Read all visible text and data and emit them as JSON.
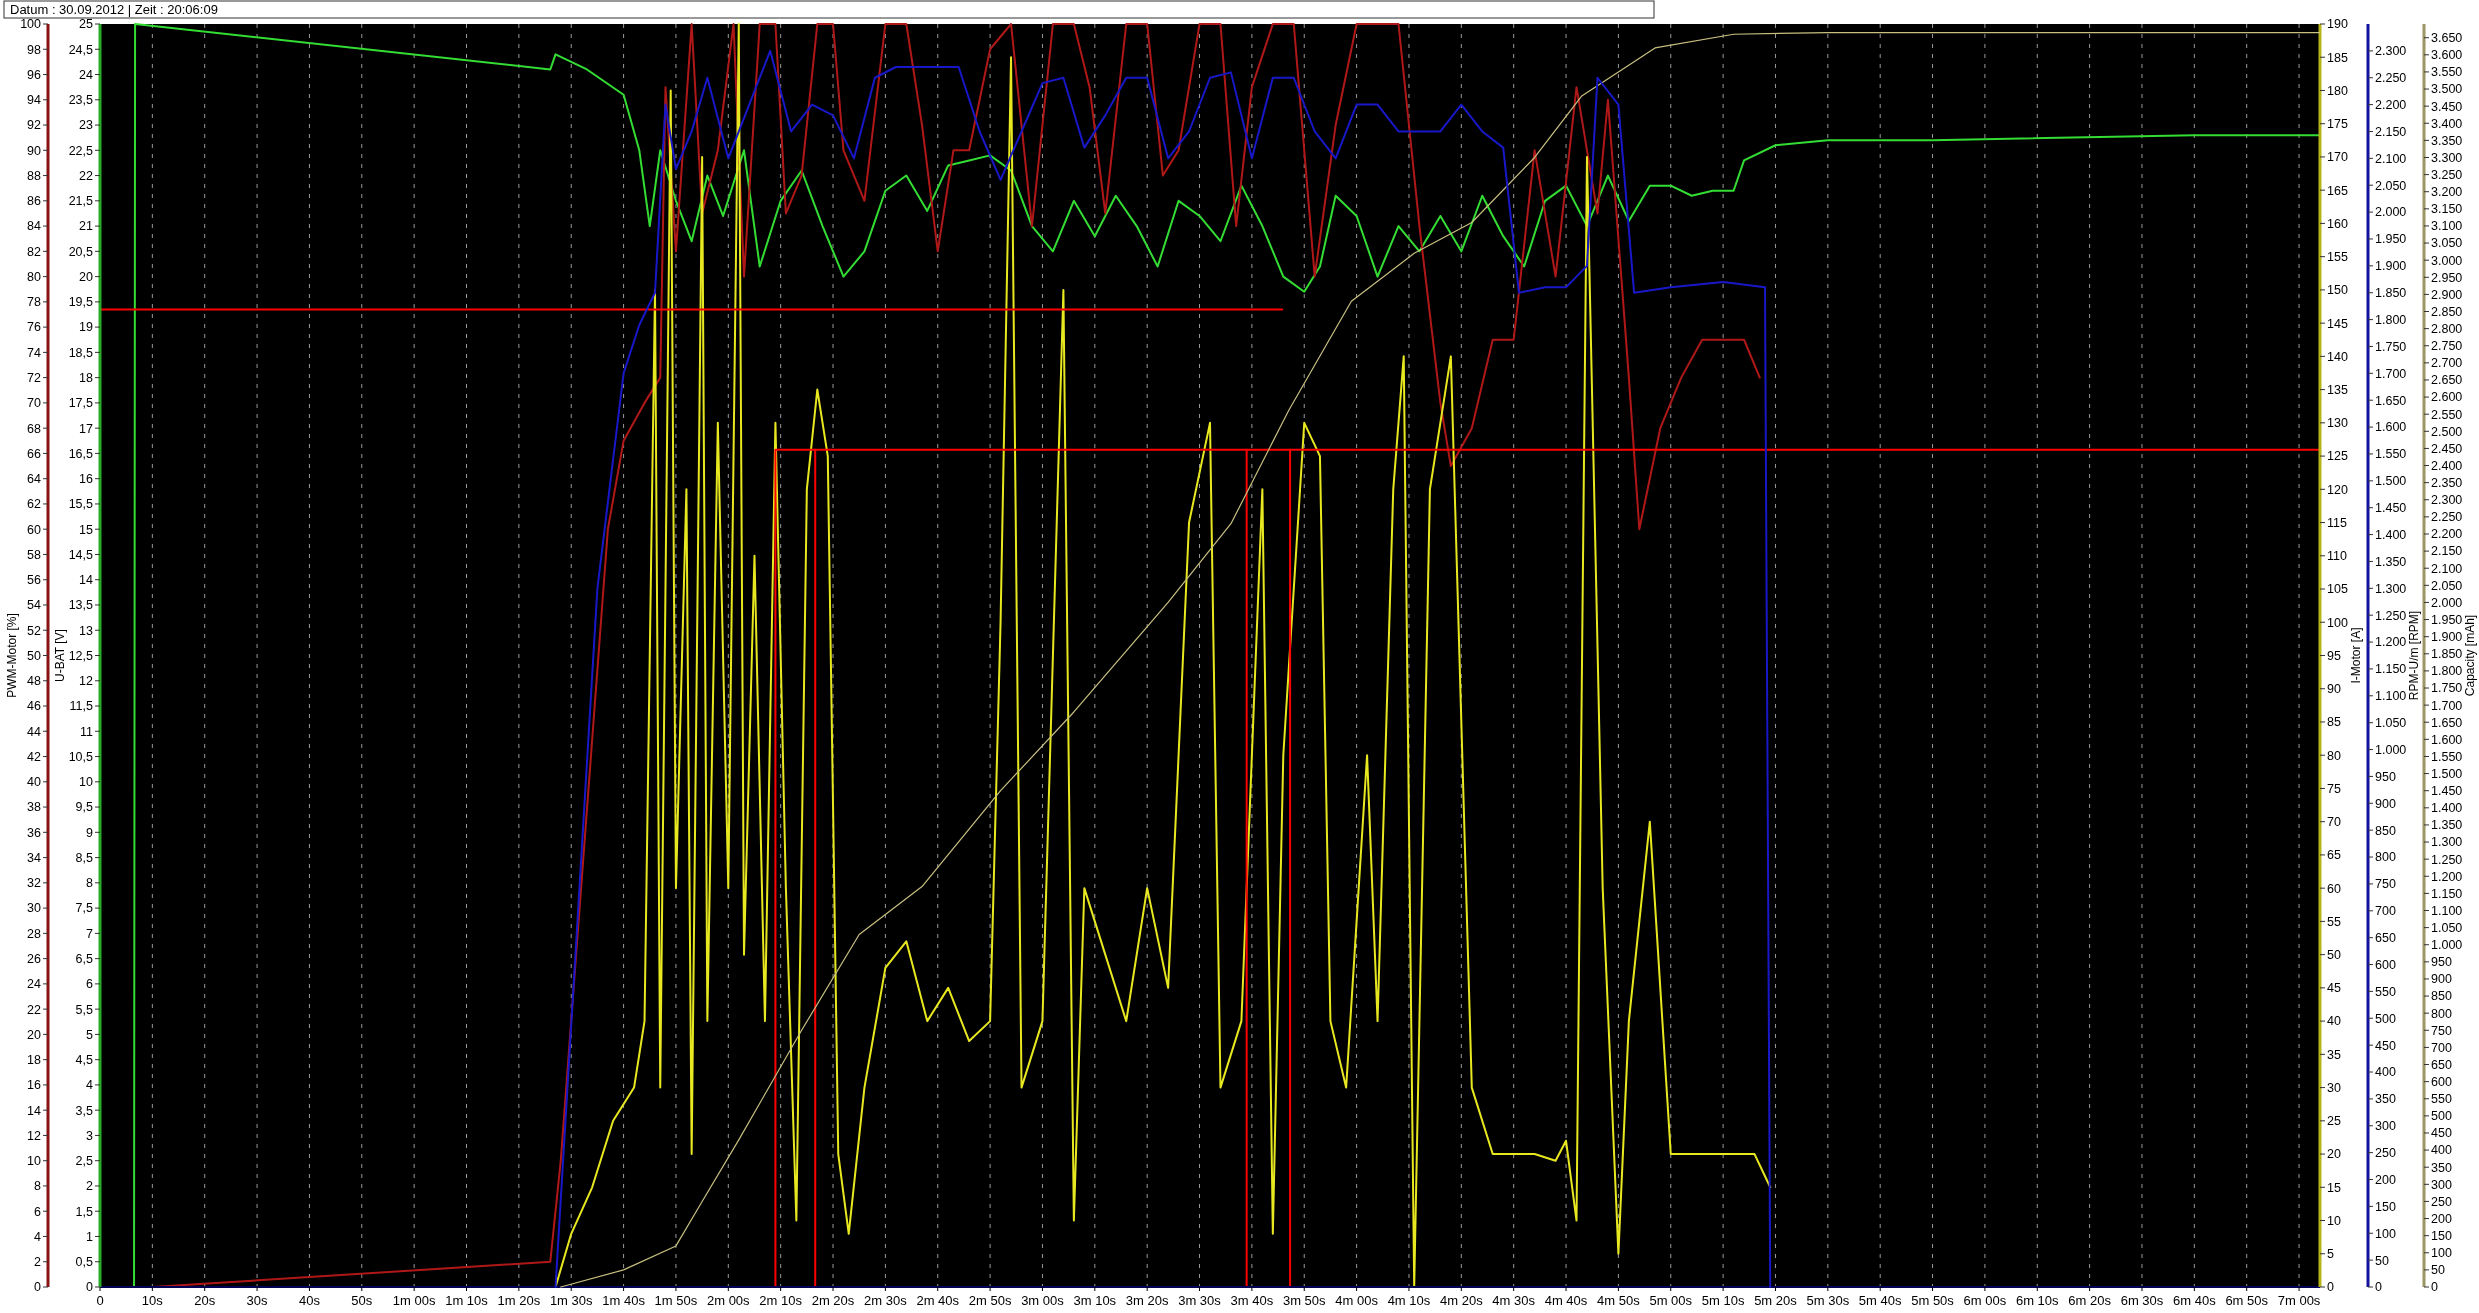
{
  "chart_data": [
    {
      "type": "line",
      "title": "Datum : 30.09.2012  |  Zeit : 20:06:09",
      "ylabel": "PWM-Motor [%]",
      "y2label": "U-BAT [V]",
      "y3label": "I-Motor [A]",
      "grid": "x",
      "xlim": [
        0,
        424
      ],
      "xticks": [
        0,
        {
          "value": 10,
          "label": "10s"
        },
        {
          "value": 20,
          "label": "20s"
        },
        {
          "value": 30,
          "label": "30s"
        },
        {
          "value": 40,
          "label": "40s"
        },
        {
          "value": 50,
          "label": "50s"
        },
        {
          "value": 60,
          "label": "1m 00s"
        },
        {
          "value": 70,
          "label": "1m 10s"
        },
        {
          "value": 80,
          "label": "1m 20s"
        },
        {
          "value": 90,
          "label": "1m 30s"
        },
        {
          "value": 100,
          "label": "1m 40s"
        },
        {
          "value": 110,
          "label": "1m 50s"
        },
        {
          "value": 120,
          "label": "2m 00s"
        },
        {
          "value": 130,
          "label": "2m 10s"
        },
        {
          "value": 140,
          "label": "2m 20s"
        },
        {
          "value": 150,
          "label": "2m 30s"
        },
        {
          "value": 160,
          "label": "2m 40s"
        },
        {
          "value": 170,
          "label": "2m 50s"
        },
        {
          "value": 180,
          "label": "3m 00s"
        },
        {
          "value": 190,
          "label": "3m 10s"
        },
        {
          "value": 200,
          "label": "3m 20s"
        },
        {
          "value": 210,
          "label": "3m 30s"
        },
        {
          "value": 220,
          "label": "3m 40s"
        },
        {
          "value": 230,
          "label": "3m 50s"
        },
        {
          "value": 240,
          "label": "4m 00s"
        },
        {
          "value": 250,
          "label": "4m 10s"
        },
        {
          "value": 260,
          "label": "4m 20s"
        },
        {
          "value": 270,
          "label": "4m 30s"
        },
        {
          "value": 280,
          "label": "4m 40s"
        },
        {
          "value": 290,
          "label": "4m 50s"
        },
        {
          "value": 300,
          "label": "5m 00s"
        },
        {
          "value": 310,
          "label": "5m 10s"
        },
        {
          "value": 320,
          "label": "5m 20s"
        },
        {
          "value": 330,
          "label": "5m 30s"
        },
        {
          "value": 340,
          "label": "5m 40s"
        },
        {
          "value": 350,
          "label": "5m 50s"
        },
        {
          "value": 360,
          "label": "6m 00s"
        },
        {
          "value": 370,
          "label": "6m 10s"
        },
        {
          "value": 380,
          "label": "6m 20s"
        },
        {
          "value": 390,
          "label": "6m 30s"
        },
        {
          "value": 400,
          "label": "6m 40s"
        },
        {
          "value": 410,
          "label": "6m 50s"
        },
        {
          "value": 420,
          "label": "7m 00s"
        }
      ],
      "ylim": [
        0,
        100
      ],
      "yticks": [
        0,
        2,
        4,
        6,
        8,
        10,
        12,
        14,
        16,
        18,
        20,
        22,
        24,
        26,
        28,
        30,
        32,
        34,
        36,
        38,
        40,
        42,
        44,
        46,
        48,
        50,
        52,
        54,
        56,
        58,
        60,
        62,
        64,
        66,
        68,
        70,
        72,
        74,
        76,
        78,
        80,
        82,
        84,
        86,
        88,
        90,
        92,
        94,
        96,
        98,
        100
      ],
      "y2lim": [
        0,
        25
      ],
      "y2ticks": [
        0,
        {
          "value": 0.5,
          "label": "0,5"
        },
        1,
        {
          "value": 1.5,
          "label": "1,5"
        },
        2,
        {
          "value": 2.5,
          "label": "2,5"
        },
        3,
        {
          "value": 3.5,
          "label": "3,5"
        },
        4,
        {
          "value": 4.5,
          "label": "4,5"
        },
        5,
        {
          "value": 5.5,
          "label": "5,5"
        },
        6,
        {
          "value": 6.5,
          "label": "6,5"
        },
        7,
        {
          "value": 7.5,
          "label": "7,5"
        },
        8,
        {
          "value": 8.5,
          "label": "8,5"
        },
        9,
        {
          "value": 9.5,
          "label": "9,5"
        },
        10,
        {
          "value": 10.5,
          "label": "10,5"
        },
        11,
        {
          "value": 11.5,
          "label": "11,5"
        },
        12,
        {
          "value": 12.5,
          "label": "12,5"
        },
        13,
        {
          "value": 13.5,
          "label": "13,5"
        },
        14,
        {
          "value": 14.5,
          "label": "14,5"
        },
        15,
        {
          "value": 15.5,
          "label": "15,5"
        },
        16,
        {
          "value": 16.5,
          "label": "16,5"
        },
        17,
        {
          "value": 17.5,
          "label": "17,5"
        },
        18,
        {
          "value": 18.5,
          "label": "18,5"
        },
        19,
        {
          "value": 19.5,
          "label": "19,5"
        },
        20,
        {
          "value": 20.5,
          "label": "20,5"
        },
        21,
        {
          "value": 21.5,
          "label": "21,5"
        },
        22,
        {
          "value": 22.5,
          "label": "22,5"
        },
        23,
        {
          "value": 23.5,
          "label": "23,5"
        },
        24,
        {
          "value": 24.5,
          "label": "24,5"
        },
        25
      ],
      "y3lim": [
        0,
        190
      ],
      "y3ticks": [
        0,
        5,
        10,
        15,
        20,
        25,
        30,
        35,
        40,
        45,
        50,
        55,
        60,
        65,
        70,
        75,
        80,
        85,
        90,
        95,
        100,
        105,
        110,
        115,
        120,
        125,
        130,
        135,
        140,
        145,
        150,
        155,
        160,
        165,
        170,
        175,
        180,
        185,
        190
      ],
      "series": [
        {
          "axis": "y2",
          "color": "#33dd33",
          "x": [
            6.5,
            6.7,
            86,
            87,
            93,
            100,
            103,
            105,
            107,
            110,
            113,
            116,
            119,
            123,
            126,
            130,
            134,
            138,
            142,
            146,
            150,
            154,
            158,
            162,
            166,
            170,
            174,
            178,
            182,
            186,
            190,
            194,
            198,
            202,
            206,
            210,
            214,
            218,
            222,
            226,
            230,
            233,
            236,
            240,
            244,
            248,
            252,
            256,
            260,
            264,
            268,
            272,
            276,
            280,
            284,
            288,
            292,
            296,
            300,
            304,
            308,
            312,
            314,
            320,
            330,
            350,
            400,
            424
          ],
          "values": [
            0,
            25,
            24.1,
            24.4,
            24.1,
            23.6,
            22.5,
            21,
            22.5,
            21.5,
            20.7,
            22,
            21.2,
            22.5,
            20.2,
            21.5,
            22.1,
            21,
            20,
            20.5,
            21.7,
            22,
            21.3,
            22.2,
            22.3,
            22.4,
            22.1,
            21,
            20.5,
            21.5,
            20.8,
            21.6,
            21,
            20.2,
            21.5,
            21.2,
            20.7,
            21.8,
            21,
            20,
            19.7,
            20.2,
            21.6,
            21.2,
            20,
            21,
            20.5,
            21.2,
            20.5,
            21.6,
            20.8,
            20.2,
            21.5,
            21.8,
            21,
            22,
            21.1,
            21.8,
            21.8,
            21.6,
            21.7,
            21.7,
            22.3,
            22.6,
            22.7,
            22.7,
            22.8,
            22.8
          ]
        },
        {
          "color": "#b01818",
          "x": [
            10,
            86,
            88,
            97,
            100,
            104,
            107,
            108,
            110,
            113,
            115,
            118,
            121,
            123,
            126,
            129,
            131,
            134,
            137,
            140,
            142,
            146,
            150,
            154,
            157,
            160,
            163,
            166,
            170,
            174,
            178,
            182,
            186,
            189,
            192,
            196,
            200,
            203,
            206,
            210,
            214,
            217,
            220,
            224,
            228,
            232,
            236,
            240,
            244,
            248,
            252,
            256,
            258,
            262,
            266,
            270,
            274,
            278,
            282,
            286,
            288,
            292,
            294,
            298,
            302,
            306,
            310,
            314,
            317
          ],
          "values": [
            0,
            2,
            10,
            60,
            67,
            70,
            72,
            95,
            82,
            100,
            85,
            90,
            100,
            80,
            100,
            100,
            85,
            88,
            100,
            100,
            90,
            86,
            100,
            100,
            92,
            82,
            90,
            90,
            98,
            100,
            84,
            100,
            100,
            95,
            85,
            100,
            100,
            88,
            90,
            100,
            100,
            84,
            95,
            100,
            100,
            80,
            92,
            100,
            100,
            100,
            84,
            70,
            65,
            68,
            75,
            75,
            90,
            80,
            95,
            85,
            94,
            72,
            60,
            68,
            72,
            75,
            75,
            75,
            72
          ]
        },
        {
          "axis": "y3",
          "color": "#e8e820",
          "x": [
            48,
            87,
            90,
            94,
            98,
            102,
            104,
            106,
            107,
            109,
            110,
            112,
            113,
            115,
            116,
            118,
            120,
            122,
            123,
            125,
            127,
            129,
            131,
            133,
            135,
            137,
            139,
            141,
            143,
            146,
            150,
            154,
            158,
            162,
            166,
            170,
            172,
            174,
            176,
            180,
            184,
            186,
            188,
            192,
            196,
            200,
            204,
            208,
            212,
            214,
            218,
            222,
            224,
            226,
            230,
            233,
            235,
            238,
            242,
            244,
            247,
            249,
            251,
            254,
            258,
            262,
            266,
            270,
            274,
            278,
            280,
            282,
            284,
            287,
            290,
            292,
            296,
            300,
            304,
            308,
            312,
            316,
            319
          ],
          "values": [
            0,
            0,
            8,
            15,
            25,
            30,
            40,
            150,
            30,
            180,
            60,
            120,
            20,
            170,
            40,
            130,
            60,
            190,
            50,
            110,
            40,
            130,
            60,
            10,
            120,
            135,
            125,
            20,
            8,
            30,
            48,
            52,
            40,
            45,
            37,
            40,
            100,
            185,
            30,
            40,
            150,
            10,
            60,
            50,
            40,
            60,
            45,
            115,
            130,
            30,
            40,
            120,
            8,
            80,
            130,
            125,
            40,
            30,
            80,
            40,
            120,
            140,
            0,
            120,
            140,
            30,
            20,
            20,
            20,
            19,
            22,
            10,
            170,
            60,
            5,
            40,
            70,
            20,
            20,
            20,
            20,
            20,
            15
          ]
        },
        {
          "color": "#ff0000",
          "x": [
            0,
            225.8
          ],
          "values": [
            77.4,
            77.4
          ]
        },
        {
          "color": "#ff0000",
          "x": [
            129,
            129,
            424
          ],
          "values": [
            0,
            66.3,
            66.3
          ]
        },
        {
          "color": "#ff0000",
          "x": [
            136.6,
            136.6
          ],
          "values": [
            0,
            66.3
          ]
        },
        {
          "color": "#ff0000",
          "x": [
            219,
            219
          ],
          "values": [
            0,
            66.3
          ]
        },
        {
          "color": "#ff0000",
          "x": [
            227.3,
            227.3
          ],
          "values": [
            0,
            66.3
          ]
        }
      ]
    },
    {
      "type": "line",
      "ylabel": "RPM-U/m [RPM]",
      "y2label": "Capacity [mAh]",
      "tick_labels": "y",
      "xlim": [
        0,
        424
      ],
      "ylim": [
        0,
        2350
      ],
      "yticks": [
        0,
        50,
        100,
        150,
        200,
        250,
        300,
        350,
        400,
        450,
        500,
        550,
        600,
        650,
        700,
        750,
        800,
        850,
        900,
        950,
        {
          "value": 1000,
          "label": "1.000"
        },
        {
          "value": 1050,
          "label": "1.050"
        },
        {
          "value": 1100,
          "label": "1.100"
        },
        {
          "value": 1150,
          "label": "1.150"
        },
        {
          "value": 1200,
          "label": "1.200"
        },
        {
          "value": 1250,
          "label": "1.250"
        },
        {
          "value": 1300,
          "label": "1.300"
        },
        {
          "value": 1350,
          "label": "1.350"
        },
        {
          "value": 1400,
          "label": "1.400"
        },
        {
          "value": 1450,
          "label": "1.450"
        },
        {
          "value": 1500,
          "label": "1.500"
        },
        {
          "value": 1550,
          "label": "1.550"
        },
        {
          "value": 1600,
          "label": "1.600"
        },
        {
          "value": 1650,
          "label": "1.650"
        },
        {
          "value": 1700,
          "label": "1.700"
        },
        {
          "value": 1750,
          "label": "1.750"
        },
        {
          "value": 1800,
          "label": "1.800"
        },
        {
          "value": 1850,
          "label": "1.850"
        },
        {
          "value": 1900,
          "label": "1.900"
        },
        {
          "value": 1950,
          "label": "1.950"
        },
        {
          "value": 2000,
          "label": "2.000"
        },
        {
          "value": 2050,
          "label": "2.050"
        },
        {
          "value": 2100,
          "label": "2.100"
        },
        {
          "value": 2150,
          "label": "2.150"
        },
        {
          "value": 2200,
          "label": "2.200"
        },
        {
          "value": 2250,
          "label": "2.250"
        },
        {
          "value": 2300,
          "label": "2.300"
        }
      ],
      "y2lim": [
        0,
        3690
      ],
      "y2ticks": [
        0,
        50,
        100,
        150,
        200,
        250,
        300,
        350,
        400,
        450,
        500,
        550,
        600,
        650,
        700,
        750,
        800,
        850,
        900,
        950,
        {
          "value": 1000,
          "label": "1.000"
        },
        {
          "value": 1050,
          "label": "1.050"
        },
        {
          "value": 1100,
          "label": "1.100"
        },
        {
          "value": 1150,
          "label": "1.150"
        },
        {
          "value": 1200,
          "label": "1.200"
        },
        {
          "value": 1250,
          "label": "1.250"
        },
        {
          "value": 1300,
          "label": "1.300"
        },
        {
          "value": 1350,
          "label": "1.350"
        },
        {
          "value": 1400,
          "label": "1.400"
        },
        {
          "value": 1450,
          "label": "1.450"
        },
        {
          "value": 1500,
          "label": "1.500"
        },
        {
          "value": 1550,
          "label": "1.550"
        },
        {
          "value": 1600,
          "label": "1.600"
        },
        {
          "value": 1650,
          "label": "1.650"
        },
        {
          "value": 1700,
          "label": "1.700"
        },
        {
          "value": 1750,
          "label": "1.750"
        },
        {
          "value": 1800,
          "label": "1.800"
        },
        {
          "value": 1850,
          "label": "1.850"
        },
        {
          "value": 1900,
          "label": "1.900"
        },
        {
          "value": 1950,
          "label": "1.950"
        },
        {
          "value": 2000,
          "label": "2.000"
        },
        {
          "value": 2050,
          "label": "2.050"
        },
        {
          "value": 2100,
          "label": "2.100"
        },
        {
          "value": 2150,
          "label": "2.150"
        },
        {
          "value": 2200,
          "label": "2.200"
        },
        {
          "value": 2250,
          "label": "2.250"
        },
        {
          "value": 2300,
          "label": "2.300"
        },
        {
          "value": 2350,
          "label": "2.350"
        },
        {
          "value": 2400,
          "label": "2.400"
        },
        {
          "value": 2450,
          "label": "2.450"
        },
        {
          "value": 2500,
          "label": "2.500"
        },
        {
          "value": 2550,
          "label": "2.550"
        },
        {
          "value": 2600,
          "label": "2.600"
        },
        {
          "value": 2650,
          "label": "2.650"
        },
        {
          "value": 2700,
          "label": "2.700"
        },
        {
          "value": 2750,
          "label": "2.750"
        },
        {
          "value": 2800,
          "label": "2.800"
        },
        {
          "value": 2850,
          "label": "2.850"
        },
        {
          "value": 2900,
          "label": "2.900"
        },
        {
          "value": 2950,
          "label": "2.950"
        },
        {
          "value": 3000,
          "label": "3.000"
        },
        {
          "value": 3050,
          "label": "3.050"
        },
        {
          "value": 3100,
          "label": "3.100"
        },
        {
          "value": 3150,
          "label": "3.150"
        },
        {
          "value": 3200,
          "label": "3.200"
        },
        {
          "value": 3250,
          "label": "3.250"
        },
        {
          "value": 3300,
          "label": "3.300"
        },
        {
          "value": 3350,
          "label": "3.350"
        },
        {
          "value": 3400,
          "label": "3.400"
        },
        {
          "value": 3450,
          "label": "3.450"
        },
        {
          "value": 3500,
          "label": "3.500"
        },
        {
          "value": 3550,
          "label": "3.550"
        },
        {
          "value": 3600,
          "label": "3.600"
        },
        {
          "value": 3650,
          "label": "3.650"
        }
      ],
      "series": [
        {
          "axis": "y2",
          "color": "#c8c080",
          "x": [
            88,
            100,
            110,
            115,
            122,
            134,
            145,
            157,
            172,
            186,
            204,
            216,
            227,
            239,
            251,
            262,
            274,
            283,
            297,
            312,
            330,
            424
          ],
          "values": [
            0,
            50,
            120,
            250,
            430,
            750,
            1030,
            1170,
            1450,
            1680,
            2000,
            2230,
            2560,
            2880,
            3020,
            3110,
            3300,
            3480,
            3620,
            3660,
            3665,
            3665
          ]
        },
        {
          "color": "#1818c8",
          "x": [
            87,
            95,
            100,
            103,
            106,
            108,
            110,
            113,
            116,
            120,
            124,
            128,
            132,
            136,
            140,
            144,
            148,
            152,
            156,
            160,
            164,
            168,
            172,
            176,
            180,
            184,
            188,
            192,
            196,
            200,
            204,
            208,
            212,
            216,
            220,
            224,
            228,
            232,
            236,
            240,
            244,
            248,
            252,
            256,
            260,
            264,
            268,
            271,
            276,
            280,
            284,
            286,
            290,
            293,
            300,
            310,
            318,
            319
          ],
          "values": [
            0,
            1300,
            1700,
            1790,
            1850,
            2200,
            2080,
            2150,
            2250,
            2100,
            2200,
            2300,
            2150,
            2200,
            2180,
            2100,
            2250,
            2270,
            2270,
            2270,
            2270,
            2150,
            2060,
            2150,
            2240,
            2250,
            2120,
            2180,
            2250,
            2250,
            2100,
            2150,
            2250,
            2260,
            2100,
            2250,
            2250,
            2150,
            2100,
            2200,
            2200,
            2150,
            2150,
            2150,
            2200,
            2150,
            2120,
            1850,
            1860,
            1860,
            1900,
            2250,
            2200,
            1850,
            1860,
            1870,
            1860,
            0
          ]
        }
      ]
    }
  ]
}
